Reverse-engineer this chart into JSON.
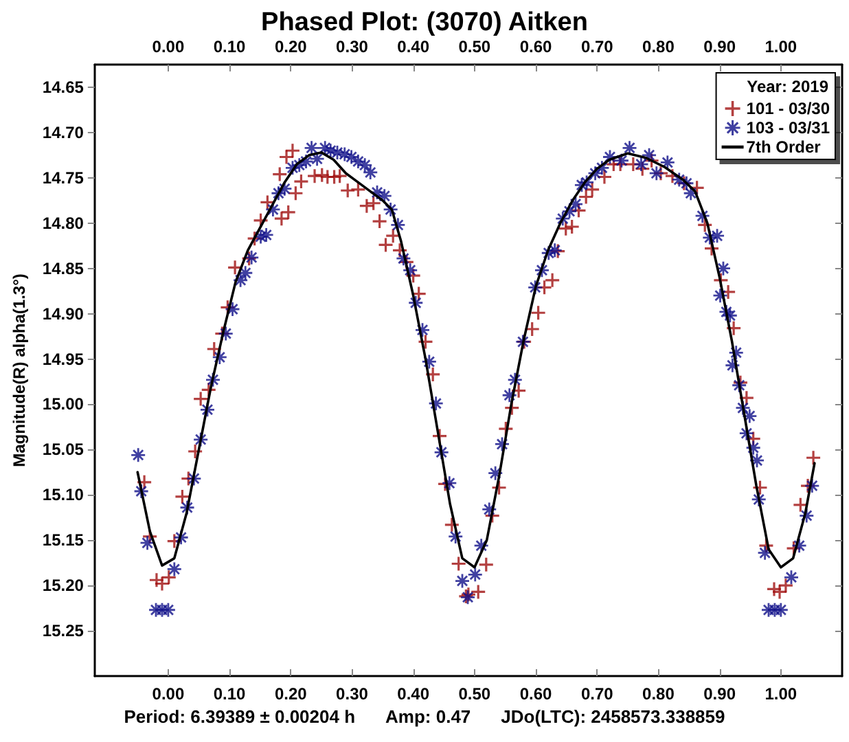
{
  "chart_data": {
    "type": "scatter",
    "title": "Phased Plot: (3070) Aitken",
    "ylabel": "Magnitude(R) alpha(1.3°)",
    "legend_title": "Year: 2019",
    "legend": "top right",
    "grid": false,
    "annotations": [
      "Period: 6.39389 ± 0.00204 h",
      "Amp: 0.47",
      "JDo(LTC): 2458573.338859"
    ],
    "xlim": [
      -0.12,
      1.1
    ],
    "x2lim": [
      -0.12,
      1.1
    ],
    "ylim": [
      15.3,
      14.625
    ],
    "xticks": [
      {
        "value": 0,
        "label": "0.00"
      },
      {
        "value": 0.1,
        "label": "0.10"
      },
      {
        "value": 0.2,
        "label": "0.20"
      },
      {
        "value": 0.3,
        "label": "0.30"
      },
      {
        "value": 0.4,
        "label": "0.40"
      },
      {
        "value": 0.5,
        "label": "0.50"
      },
      {
        "value": 0.6,
        "label": "0.60"
      },
      {
        "value": 0.7,
        "label": "0.70"
      },
      {
        "value": 0.8,
        "label": "0.80"
      },
      {
        "value": 0.9,
        "label": "0.90"
      },
      {
        "value": 1,
        "label": "1.00"
      }
    ],
    "x2ticks": [
      {
        "value": 0,
        "label": "0.00"
      },
      {
        "value": 0.1,
        "label": "0.10"
      },
      {
        "value": 0.2,
        "label": "0.20"
      },
      {
        "value": 0.3,
        "label": "0.30"
      },
      {
        "value": 0.4,
        "label": "0.40"
      },
      {
        "value": 0.5,
        "label": "0.50"
      },
      {
        "value": 0.6,
        "label": "0.60"
      },
      {
        "value": 0.7,
        "label": "0.70"
      },
      {
        "value": 0.8,
        "label": "0.80"
      },
      {
        "value": 0.9,
        "label": "0.90"
      },
      {
        "value": 1,
        "label": "1.00"
      }
    ],
    "yticks": [
      14.65,
      {
        "value": 14.7,
        "label": "14.70"
      },
      14.75,
      {
        "value": 14.8,
        "label": "14.80"
      },
      14.85,
      {
        "value": 14.9,
        "label": "14.90"
      },
      14.95,
      {
        "value": 15,
        "label": "15.00"
      },
      15.05,
      {
        "value": 15.1,
        "label": "15.10"
      },
      15.15,
      {
        "value": 15.2,
        "label": "15.20"
      },
      15.25
    ],
    "series": [
      {
        "name": "101 - 03/30",
        "color": "#a01010",
        "marker": "cross",
        "x": [
          -0.039,
          -0.03,
          -0.019,
          -0.01,
          0.001,
          0.01,
          0.023,
          0.033,
          0.044,
          0.053,
          0.066,
          0.075,
          0.088,
          0.097,
          0.109,
          0.132,
          0.141,
          0.151,
          0.162,
          0.182,
          0.185,
          0.196,
          0.193,
          0.203,
          0.208,
          0.217,
          0.239,
          0.251,
          0.26,
          0.271,
          0.28,
          0.293,
          0.31,
          0.324,
          0.335,
          0.345,
          0.355,
          0.367,
          0.378,
          0.389,
          0.4,
          0.409,
          0.42,
          0.432,
          0.443,
          0.452,
          0.463,
          0.474,
          0.486,
          0.49,
          0.506,
          0.519,
          0.529,
          0.54,
          0.551,
          0.561,
          0.572,
          0.581,
          0.594,
          0.604,
          0.614,
          0.627,
          0.636,
          0.649,
          0.659,
          0.67,
          0.682,
          0.692,
          0.712,
          0.727,
          0.738,
          0.759,
          0.774,
          0.789,
          0.804,
          0.823,
          0.842,
          0.863,
          0.876,
          0.887,
          0.902,
          0.914,
          0.923,
          0.934,
          0.944,
          0.955,
          0.966,
          0.976,
          0.989,
          0.998,
          1.008,
          1.021,
          1.032,
          1.044,
          1.053
        ],
        "values": [
          15.086,
          15.146,
          15.194,
          15.198,
          15.191,
          15.151,
          15.102,
          15.082,
          15.052,
          14.994,
          14.984,
          14.939,
          14.922,
          14.893,
          14.849,
          14.839,
          14.817,
          14.797,
          14.777,
          14.746,
          14.795,
          14.788,
          14.727,
          14.72,
          14.767,
          14.754,
          14.748,
          14.747,
          14.749,
          14.749,
          14.748,
          14.764,
          14.763,
          14.781,
          14.778,
          14.798,
          14.824,
          14.814,
          14.83,
          14.843,
          14.858,
          14.878,
          14.931,
          14.967,
          15.035,
          15.088,
          15.133,
          15.176,
          15.212,
          15.21,
          15.207,
          15.177,
          15.123,
          15.092,
          15.027,
          15.004,
          14.985,
          14.931,
          14.917,
          14.899,
          14.871,
          14.863,
          14.831,
          14.806,
          14.804,
          14.786,
          14.771,
          14.763,
          14.749,
          14.735,
          14.735,
          14.735,
          14.74,
          14.731,
          14.745,
          14.748,
          14.756,
          14.761,
          14.802,
          14.828,
          14.863,
          14.876,
          14.916,
          14.976,
          14.993,
          15.038,
          15.092,
          15.156,
          15.204,
          15.207,
          15.2,
          15.159,
          15.111,
          15.09,
          15.059
        ]
      },
      {
        "name": "103 - 03/31",
        "color": "#10108a",
        "marker": "star",
        "x": [
          -0.049,
          -0.044,
          -0.034,
          -0.02,
          -0.01,
          0.0,
          0.01,
          0.021,
          0.031,
          0.042,
          0.053,
          0.064,
          0.073,
          0.084,
          0.094,
          0.105,
          0.118,
          0.126,
          0.136,
          0.151,
          0.16,
          0.171,
          0.18,
          0.19,
          0.203,
          0.214,
          0.225,
          0.234,
          0.243,
          0.256,
          0.265,
          0.276,
          0.288,
          0.299,
          0.31,
          0.321,
          0.33,
          0.341,
          0.353,
          0.363,
          0.375,
          0.384,
          0.395,
          0.404,
          0.415,
          0.426,
          0.437,
          0.446,
          0.459,
          0.469,
          0.48,
          0.489,
          0.501,
          0.511,
          0.524,
          0.534,
          0.545,
          0.557,
          0.566,
          0.579,
          0.599,
          0.61,
          0.621,
          0.631,
          0.644,
          0.655,
          0.665,
          0.675,
          0.683,
          0.697,
          0.708,
          0.721,
          0.74,
          0.753,
          0.772,
          0.785,
          0.797,
          0.815,
          0.834,
          0.846,
          0.853,
          0.872,
          0.884,
          0.896,
          0.906,
          0.901,
          0.911,
          0.917,
          0.927,
          0.921,
          0.932,
          0.938,
          0.949,
          0.944,
          0.955,
          0.961,
          0.964,
          0.974,
          0.98,
          0.99,
          1.0,
          1.017,
          1.03,
          1.042,
          1.051
        ],
        "values": [
          15.056,
          15.096,
          15.153,
          15.227,
          15.227,
          15.227,
          15.182,
          15.147,
          15.114,
          15.082,
          15.039,
          15.006,
          14.973,
          14.948,
          14.922,
          14.895,
          14.863,
          14.855,
          14.838,
          14.815,
          14.813,
          14.785,
          14.767,
          14.762,
          14.739,
          14.736,
          14.732,
          14.717,
          14.729,
          14.717,
          14.72,
          14.722,
          14.724,
          14.727,
          14.732,
          14.736,
          14.744,
          14.766,
          14.77,
          14.785,
          14.802,
          14.839,
          14.852,
          14.888,
          14.918,
          14.953,
          14.999,
          15.053,
          15.087,
          15.146,
          15.195,
          15.213,
          15.188,
          15.156,
          15.116,
          15.076,
          15.044,
          14.99,
          14.973,
          14.931,
          14.871,
          14.852,
          14.833,
          14.83,
          14.795,
          14.787,
          14.779,
          14.758,
          14.755,
          14.745,
          14.739,
          14.727,
          14.731,
          14.717,
          14.735,
          14.725,
          14.745,
          14.733,
          14.752,
          14.756,
          14.767,
          14.792,
          14.816,
          14.814,
          14.85,
          14.88,
          14.898,
          14.902,
          14.943,
          14.957,
          14.979,
          15.004,
          15.013,
          15.032,
          15.048,
          15.062,
          15.105,
          15.164,
          15.227,
          15.227,
          15.227,
          15.191,
          15.156,
          15.123,
          15.09
        ]
      },
      {
        "name": "7th Order",
        "type": "line",
        "color": "#000000",
        "marker": "none",
        "line_style": "solid",
        "x": [
          -0.05,
          -0.03,
          -0.01,
          0.01,
          0.03,
          0.05,
          0.07,
          0.09,
          0.11,
          0.13,
          0.15,
          0.17,
          0.19,
          0.21,
          0.23,
          0.25,
          0.27,
          0.29,
          0.31,
          0.33,
          0.35,
          0.365,
          0.38,
          0.4,
          0.42,
          0.44,
          0.46,
          0.48,
          0.5,
          0.52,
          0.54,
          0.56,
          0.58,
          0.6,
          0.62,
          0.64,
          0.66,
          0.68,
          0.7,
          0.72,
          0.75,
          0.78,
          0.81,
          0.84,
          0.86,
          0.88,
          0.9,
          0.92,
          0.94,
          0.96,
          0.98,
          1.0,
          1.02,
          1.04,
          1.055
        ],
        "values": [
          15.075,
          15.14,
          15.178,
          15.17,
          15.12,
          15.05,
          14.98,
          14.92,
          14.865,
          14.83,
          14.805,
          14.78,
          14.755,
          14.735,
          14.725,
          14.722,
          14.73,
          14.745,
          14.755,
          14.765,
          14.775,
          14.785,
          14.82,
          14.88,
          14.95,
          15.03,
          15.11,
          15.17,
          15.18,
          15.15,
          15.08,
          15.0,
          14.93,
          14.87,
          14.83,
          14.8,
          14.775,
          14.755,
          14.74,
          14.73,
          14.723,
          14.728,
          14.738,
          14.752,
          14.765,
          14.8,
          14.86,
          14.93,
          15.01,
          15.09,
          15.16,
          15.18,
          15.17,
          15.12,
          15.065
        ]
      }
    ]
  }
}
